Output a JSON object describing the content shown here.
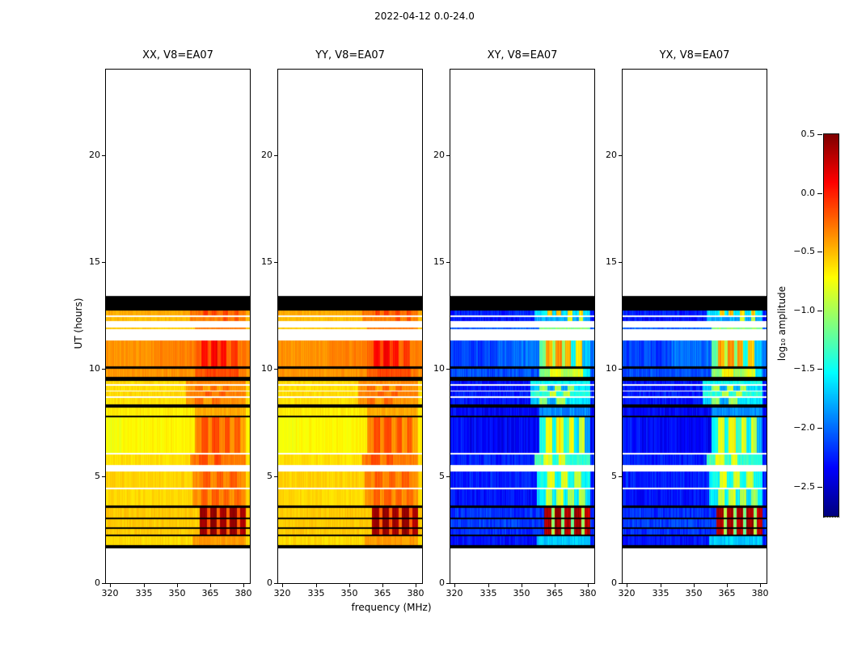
{
  "title": "2022-04-12 0.0-24.0",
  "chart_data": {
    "type": "heatmap",
    "xlabel": "frequency (MHz)",
    "ylabel": "UT (hours)",
    "xlim": [
      318,
      383
    ],
    "ylim": [
      0,
      24
    ],
    "xticks": [
      320,
      335,
      350,
      365,
      380
    ],
    "yticks": [
      0,
      5,
      10,
      15,
      20
    ],
    "panels": [
      {
        "title": "XX, V8=EA07",
        "base": "warm"
      },
      {
        "title": "YY, V8=EA07",
        "base": "warm"
      },
      {
        "title": "XY, V8=EA07",
        "base": "cool"
      },
      {
        "title": "YX, V8=EA07",
        "base": "cool"
      }
    ],
    "colorbar": {
      "label": "log₁₀ amplitude",
      "vmin": -2.75,
      "vmax": 0.5,
      "ticks": [
        0.5,
        0.0,
        -0.5,
        -1.0,
        -1.5,
        -2.0,
        -2.5
      ]
    },
    "bands": [
      {
        "t0": 12.72,
        "t1": 13.42,
        "kind": "black"
      },
      {
        "t0": 12.5,
        "t1": 12.72,
        "warm": -0.45,
        "cool": -2.25,
        "features": [
          {
            "f0": 356,
            "f1": 381,
            "warm": -0.28,
            "cool": -1.6
          },
          {
            "f0": 362,
            "f1": 364,
            "warm": -0.1,
            "cool": -0.55
          },
          {
            "f0": 366,
            "f1": 368,
            "warm": -0.1,
            "cool": -0.5
          },
          {
            "f0": 371,
            "f1": 373,
            "warm": -0.12,
            "cool": -0.6
          },
          {
            "f0": 376,
            "f1": 378,
            "warm": -0.12,
            "cool": -0.6
          }
        ]
      },
      {
        "t0": 12.44,
        "t1": 12.5,
        "kind": "white"
      },
      {
        "t0": 12.25,
        "t1": 12.44,
        "warm": -0.5,
        "cool": -2.3,
        "features": [
          {
            "f0": 356,
            "f1": 381,
            "warm": -0.32,
            "cool": -1.8
          },
          {
            "f0": 371,
            "f1": 373,
            "warm": -0.15,
            "cool": -0.8
          },
          {
            "f0": 376,
            "f1": 378,
            "warm": -0.15,
            "cool": -0.9
          }
        ]
      },
      {
        "t0": 11.95,
        "t1": 12.25,
        "kind": "white"
      },
      {
        "t0": 11.88,
        "t1": 11.95,
        "warm": -0.55,
        "cool": -2.05,
        "features": [
          {
            "f0": 358,
            "f1": 381,
            "warm": -0.3,
            "cool": -1.1
          }
        ]
      },
      {
        "t0": 11.35,
        "t1": 11.88,
        "kind": "white"
      },
      {
        "t0": 10.12,
        "t1": 11.35,
        "warm": -0.32,
        "cool": -2.0,
        "features": [
          {
            "f0": 318,
            "f1": 340,
            "warm": -0.38,
            "cool": -2.15
          },
          {
            "f0": 358,
            "f1": 361,
            "warm": -0.22,
            "cool": -1.2
          },
          {
            "f0": 361,
            "f1": 364,
            "warm": 0.05,
            "cool": -0.45
          },
          {
            "f0": 364,
            "f1": 365.5,
            "warm": -0.18,
            "cool": -1.0
          },
          {
            "f0": 365.5,
            "f1": 368.5,
            "warm": 0.12,
            "cool": -0.35
          },
          {
            "f0": 368.5,
            "f1": 370,
            "warm": -0.15,
            "cool": -1.1
          },
          {
            "f0": 370,
            "f1": 372.5,
            "warm": 0.05,
            "cool": -0.45
          },
          {
            "f0": 372.5,
            "f1": 374.5,
            "warm": -0.25,
            "cool": -1.5
          },
          {
            "f0": 374.5,
            "f1": 377.5,
            "warm": -0.08,
            "cool": -0.6
          },
          {
            "f0": 377.5,
            "f1": 381,
            "warm": -0.3,
            "cool": -1.7
          }
        ]
      },
      {
        "t0": 10.02,
        "t1": 10.12,
        "kind": "black"
      },
      {
        "t0": 9.62,
        "t1": 10.02,
        "warm": -0.38,
        "cool": -2.1,
        "features": [
          {
            "f0": 358,
            "f1": 363,
            "warm": -0.2,
            "cool": -1.1
          },
          {
            "f0": 363,
            "f1": 368,
            "warm": -0.1,
            "cool": -0.7
          },
          {
            "f0": 368,
            "f1": 373,
            "warm": -0.16,
            "cool": -1.0
          },
          {
            "f0": 373,
            "f1": 378,
            "warm": -0.12,
            "cool": -0.8
          },
          {
            "f0": 378,
            "f1": 381,
            "warm": -0.3,
            "cool": -1.6
          }
        ]
      },
      {
        "t0": 9.45,
        "t1": 9.62,
        "kind": "black"
      },
      {
        "t0": 9.28,
        "t1": 9.45,
        "warm": -0.6,
        "cool": -2.3,
        "features": [
          {
            "f0": 354,
            "f1": 381,
            "warm": -0.35,
            "cool": -1.5
          }
        ]
      },
      {
        "t0": 9.22,
        "t1": 9.28,
        "kind": "white"
      },
      {
        "t0": 9.0,
        "t1": 9.22,
        "warm": -0.62,
        "cool": -2.3,
        "features": [
          {
            "f0": 354,
            "f1": 358,
            "warm": -0.4,
            "cool": -1.7
          },
          {
            "f0": 358,
            "f1": 362,
            "warm": -0.25,
            "cool": -1.0
          },
          {
            "f0": 362,
            "f1": 365,
            "warm": -0.45,
            "cool": -1.8
          },
          {
            "f0": 365,
            "f1": 368,
            "warm": -0.22,
            "cool": -0.9
          },
          {
            "f0": 368,
            "f1": 371,
            "warm": -0.45,
            "cool": -1.8
          },
          {
            "f0": 371,
            "f1": 374,
            "warm": -0.25,
            "cool": -1.0
          },
          {
            "f0": 374,
            "f1": 381,
            "warm": -0.38,
            "cool": -1.6
          }
        ]
      },
      {
        "t0": 8.95,
        "t1": 9.0,
        "kind": "white"
      },
      {
        "t0": 8.72,
        "t1": 8.95,
        "warm": -0.6,
        "cool": -2.25,
        "features": [
          {
            "f0": 354,
            "f1": 381,
            "warm": -0.32,
            "cool": -1.4
          },
          {
            "f0": 363,
            "f1": 366,
            "warm": -0.2,
            "cool": -0.9
          },
          {
            "f0": 369,
            "f1": 372,
            "warm": -0.2,
            "cool": -0.9
          }
        ]
      },
      {
        "t0": 8.67,
        "t1": 8.72,
        "kind": "white"
      },
      {
        "t0": 8.35,
        "t1": 8.67,
        "warm": -0.62,
        "cool": -2.3,
        "features": [
          {
            "f0": 354,
            "f1": 358,
            "warm": -0.4,
            "cool": -1.7
          },
          {
            "f0": 358,
            "f1": 362,
            "warm": -0.25,
            "cool": -1.1
          },
          {
            "f0": 362,
            "f1": 366,
            "warm": -0.42,
            "cool": -1.8
          },
          {
            "f0": 366,
            "f1": 370,
            "warm": -0.25,
            "cool": -1.0
          },
          {
            "f0": 370,
            "f1": 381,
            "warm": -0.38,
            "cool": -1.6
          }
        ]
      },
      {
        "t0": 8.22,
        "t1": 8.35,
        "kind": "black"
      },
      {
        "t0": 7.84,
        "t1": 8.22,
        "warm": -0.66,
        "cool": -2.35,
        "features": [
          {
            "f0": 358,
            "f1": 381,
            "warm": -0.45,
            "cool": -1.9
          }
        ]
      },
      {
        "t0": 7.76,
        "t1": 7.84,
        "kind": "black"
      },
      {
        "t0": 6.1,
        "t1": 7.76,
        "warm": -0.7,
        "cool": -2.35,
        "features": [
          {
            "f0": 318,
            "f1": 326,
            "warm": -0.75,
            "cool": -2.3
          },
          {
            "f0": 358,
            "f1": 361,
            "warm": -0.35,
            "cool": -1.5
          },
          {
            "f0": 361,
            "f1": 364,
            "warm": -0.15,
            "cool": -0.8
          },
          {
            "f0": 364,
            "f1": 366,
            "warm": -0.35,
            "cool": -1.5
          },
          {
            "f0": 366,
            "f1": 369,
            "warm": -0.12,
            "cool": -0.7
          },
          {
            "f0": 369,
            "f1": 371.5,
            "warm": -0.35,
            "cool": -1.4
          },
          {
            "f0": 371.5,
            "f1": 374,
            "warm": -0.15,
            "cool": -0.8
          },
          {
            "f0": 374,
            "f1": 376,
            "warm": -0.4,
            "cool": -1.6
          },
          {
            "f0": 376,
            "f1": 378.5,
            "warm": -0.2,
            "cool": -0.9
          },
          {
            "f0": 378.5,
            "f1": 381,
            "warm": -0.45,
            "cool": -1.8
          }
        ]
      },
      {
        "t0": 6.02,
        "t1": 6.1,
        "kind": "white"
      },
      {
        "t0": 5.5,
        "t1": 6.02,
        "warm": -0.62,
        "cool": -2.25,
        "features": [
          {
            "f0": 356,
            "f1": 360,
            "warm": -0.3,
            "cool": -1.3
          },
          {
            "f0": 360,
            "f1": 364,
            "warm": -0.15,
            "cool": -0.8
          },
          {
            "f0": 364,
            "f1": 367,
            "warm": -0.35,
            "cool": -1.4
          },
          {
            "f0": 367,
            "f1": 370,
            "warm": -0.15,
            "cool": -0.8
          },
          {
            "f0": 370,
            "f1": 381,
            "warm": -0.3,
            "cool": -1.4
          }
        ]
      },
      {
        "t0": 5.2,
        "t1": 5.5,
        "kind": "white"
      },
      {
        "t0": 4.45,
        "t1": 5.2,
        "warm": -0.58,
        "cool": -2.25,
        "features": [
          {
            "f0": 357,
            "f1": 381,
            "warm": -0.35,
            "cool": -1.5
          },
          {
            "f0": 362,
            "f1": 365,
            "warm": -0.18,
            "cool": -0.8
          },
          {
            "f0": 368,
            "f1": 371,
            "warm": -0.18,
            "cool": -0.8
          },
          {
            "f0": 374,
            "f1": 377,
            "warm": -0.2,
            "cool": -0.9
          }
        ]
      },
      {
        "t0": 4.4,
        "t1": 4.45,
        "kind": "white"
      },
      {
        "t0": 3.62,
        "t1": 4.4,
        "warm": -0.6,
        "cool": -2.3,
        "features": [
          {
            "f0": 357,
            "f1": 381,
            "warm": -0.38,
            "cool": -1.6
          },
          {
            "f0": 361,
            "f1": 364,
            "warm": -0.2,
            "cool": -0.9
          },
          {
            "f0": 366,
            "f1": 369,
            "warm": -0.18,
            "cool": -0.85
          },
          {
            "f0": 371,
            "f1": 374,
            "warm": -0.22,
            "cool": -1.0
          },
          {
            "f0": 376,
            "f1": 379,
            "warm": -0.22,
            "cool": -1.0
          }
        ]
      },
      {
        "t0": 3.5,
        "t1": 3.62,
        "kind": "black"
      },
      {
        "t0": 3.05,
        "t1": 3.5,
        "warm": -0.55,
        "cool": -2.2,
        "features": [
          {
            "f0": 360.5,
            "f1": 363.5,
            "warm": 0.4,
            "cool": 0.35
          },
          {
            "f0": 363.5,
            "f1": 365,
            "warm": -0.2,
            "cool": -1.0
          },
          {
            "f0": 365,
            "f1": 368,
            "warm": 0.45,
            "cool": 0.4
          },
          {
            "f0": 368,
            "f1": 369.5,
            "warm": -0.2,
            "cool": -1.1
          },
          {
            "f0": 369.5,
            "f1": 372.5,
            "warm": 0.4,
            "cool": 0.35
          },
          {
            "f0": 372.5,
            "f1": 374,
            "warm": -0.25,
            "cool": -1.2
          },
          {
            "f0": 374,
            "f1": 377,
            "warm": 0.45,
            "cool": 0.4
          },
          {
            "f0": 377,
            "f1": 378.5,
            "warm": -0.2,
            "cool": -1.0
          },
          {
            "f0": 378.5,
            "f1": 381,
            "warm": 0.35,
            "cool": 0.3
          }
        ]
      },
      {
        "t0": 2.98,
        "t1": 3.05,
        "kind": "black"
      },
      {
        "t0": 2.62,
        "t1": 2.98,
        "warm": -0.55,
        "cool": -2.15,
        "features": [
          {
            "f0": 360.5,
            "f1": 363.5,
            "warm": 0.4,
            "cool": 0.35
          },
          {
            "f0": 363.5,
            "f1": 365,
            "warm": -0.2,
            "cool": -1.0
          },
          {
            "f0": 365,
            "f1": 368,
            "warm": 0.45,
            "cool": 0.4
          },
          {
            "f0": 368,
            "f1": 369.5,
            "warm": -0.2,
            "cool": -1.1
          },
          {
            "f0": 369.5,
            "f1": 372.5,
            "warm": 0.4,
            "cool": 0.35
          },
          {
            "f0": 372.5,
            "f1": 374,
            "warm": -0.25,
            "cool": -1.2
          },
          {
            "f0": 374,
            "f1": 377,
            "warm": 0.45,
            "cool": 0.4
          },
          {
            "f0": 377,
            "f1": 378.5,
            "warm": -0.2,
            "cool": -1.0
          },
          {
            "f0": 378.5,
            "f1": 381,
            "warm": 0.35,
            "cool": 0.3
          }
        ]
      },
      {
        "t0": 2.55,
        "t1": 2.62,
        "kind": "black"
      },
      {
        "t0": 2.28,
        "t1": 2.55,
        "warm": -0.55,
        "cool": -2.2,
        "features": [
          {
            "f0": 360.5,
            "f1": 363.5,
            "warm": 0.4,
            "cool": 0.35
          },
          {
            "f0": 363.5,
            "f1": 365,
            "warm": -0.2,
            "cool": -1.0
          },
          {
            "f0": 365,
            "f1": 368,
            "warm": 0.45,
            "cool": 0.4
          },
          {
            "f0": 368,
            "f1": 369.5,
            "warm": -0.2,
            "cool": -1.1
          },
          {
            "f0": 369.5,
            "f1": 372.5,
            "warm": 0.4,
            "cool": 0.35
          },
          {
            "f0": 372.5,
            "f1": 374,
            "warm": -0.25,
            "cool": -1.2
          },
          {
            "f0": 374,
            "f1": 377,
            "warm": 0.45,
            "cool": 0.4
          },
          {
            "f0": 377,
            "f1": 378.5,
            "warm": -0.2,
            "cool": -1.0
          },
          {
            "f0": 378.5,
            "f1": 381,
            "warm": 0.35,
            "cool": 0.3
          }
        ]
      },
      {
        "t0": 2.18,
        "t1": 2.28,
        "kind": "black"
      },
      {
        "t0": 1.78,
        "t1": 2.18,
        "warm": -0.6,
        "cool": -2.3,
        "features": [
          {
            "f0": 357,
            "f1": 381,
            "warm": -0.4,
            "cool": -1.7
          }
        ]
      },
      {
        "t0": 1.62,
        "t1": 1.78,
        "kind": "black"
      }
    ]
  }
}
